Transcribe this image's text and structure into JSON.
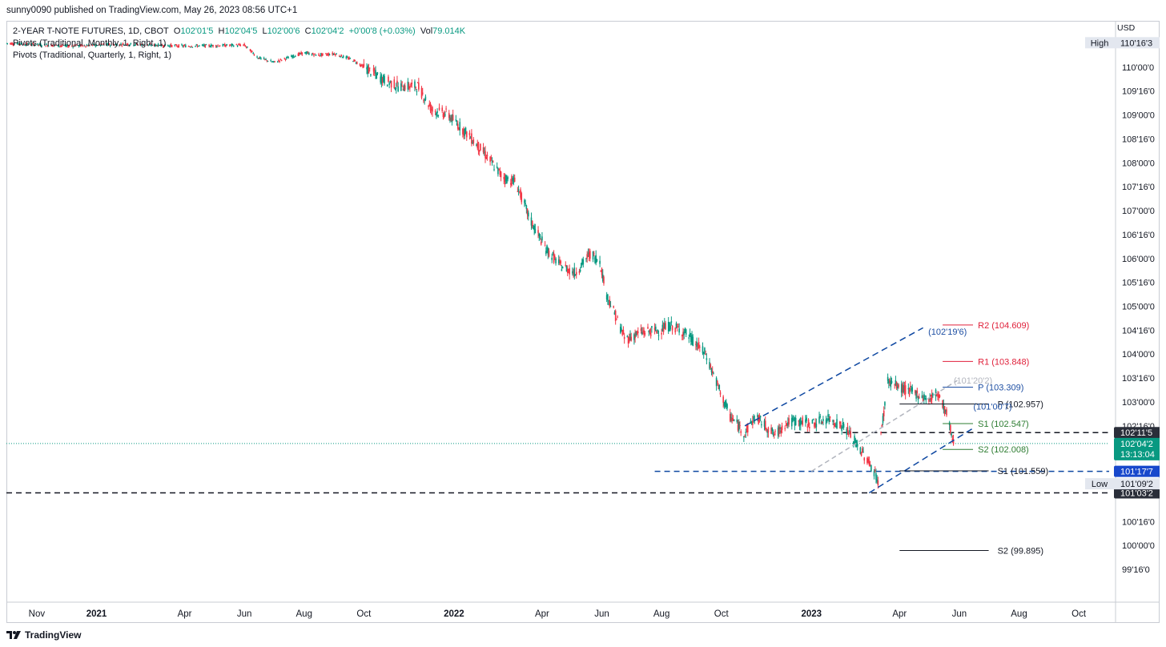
{
  "header": {
    "publisher_line": "sunny0090 published on TradingView.com, May 26, 2023 08:56 UTC+1"
  },
  "legend": {
    "symbol": "2-YEAR T-NOTE FUTURES, 1D, CBOT",
    "o_label": "O",
    "o_value": "102'01'5",
    "h_label": "H",
    "h_value": "102'04'5",
    "l_label": "L",
    "l_value": "102'00'6",
    "c_label": "C",
    "c_value": "102'04'2",
    "change": "+0'00'8 (+0.03%)",
    "vol_label": "Vol",
    "vol_value": "79.014K",
    "pivot_monthly": "Pivots (Traditional, Monthly, 1, Right, 1)",
    "pivot_quarterly": "Pivots (Traditional, Quarterly, 1, Right, 1)"
  },
  "footer": {
    "brand": "TradingView"
  },
  "colors": {
    "up": "#089981",
    "down": "#f23645",
    "blue_dash": "#0d47a1",
    "pivot_black": "#131722",
    "r_red": "#e0213b",
    "s_green": "#2e7d32",
    "p_blue": "#1e4fa3",
    "gray_line": "#b2b5be",
    "tag_dark": "#2a2e39",
    "tag_green": "#089981",
    "tag_blue": "#1848cc",
    "tag_light": "#e3e7ef"
  },
  "chart_data": {
    "type": "candlestick",
    "title": "2-YEAR T-NOTE FUTURES, 1D, CBOT",
    "currency": "USD",
    "y_axis": {
      "tick_labels": [
        "110'00'0",
        "109'16'0",
        "109'00'0",
        "108'16'0",
        "108'00'0",
        "107'16'0",
        "107'00'0",
        "106'16'0",
        "106'00'0",
        "105'16'0",
        "105'00'0",
        "104'16'0",
        "104'00'0",
        "103'16'0",
        "103'00'0",
        "102'16'0",
        "100'16'0",
        "100'00'0",
        "99'16'0"
      ],
      "range": [
        99.25,
        110.8
      ]
    },
    "x_axis": {
      "tick_labels": [
        "Nov",
        "2021",
        "Apr",
        "Jun",
        "Aug",
        "Oct",
        "2022",
        "Apr",
        "Jun",
        "Aug",
        "Oct",
        "2023",
        "Apr",
        "Jun",
        "Aug",
        "Oct"
      ],
      "bold_ticks": [
        "2021",
        "2022",
        "2023"
      ],
      "range": [
        "2020-10-01",
        "2023-11-01"
      ],
      "tick_dates": [
        "2020-11-01",
        "2021-01-01",
        "2021-04-01",
        "2021-06-01",
        "2021-08-01",
        "2021-10-01",
        "2022-01-01",
        "2022-04-01",
        "2022-06-01",
        "2022-08-01",
        "2022-10-01",
        "2023-01-01",
        "2023-04-01",
        "2023-06-01",
        "2023-08-01",
        "2023-10-01"
      ]
    },
    "price_path": [
      [
        "2020-10-01",
        110.5
      ],
      [
        "2020-12-01",
        110.44
      ],
      [
        "2021-02-01",
        110.48
      ],
      [
        "2021-04-01",
        110.44
      ],
      [
        "2021-06-01",
        110.46
      ],
      [
        "2021-06-15",
        110.2
      ],
      [
        "2021-07-01",
        110.1
      ],
      [
        "2021-08-01",
        110.3
      ],
      [
        "2021-08-15",
        110.25
      ],
      [
        "2021-09-01",
        110.28
      ],
      [
        "2021-09-20",
        110.15
      ],
      [
        "2021-10-20",
        109.75
      ],
      [
        "2021-11-05",
        109.6
      ],
      [
        "2021-11-25",
        109.6
      ],
      [
        "2021-12-10",
        109.1
      ],
      [
        "2021-12-25",
        109.02
      ],
      [
        "2022-01-15",
        108.6
      ],
      [
        "2022-02-01",
        108.2
      ],
      [
        "2022-02-20",
        107.7
      ],
      [
        "2022-03-05",
        107.6
      ],
      [
        "2022-03-20",
        106.8
      ],
      [
        "2022-04-05",
        106.2
      ],
      [
        "2022-04-20",
        105.85
      ],
      [
        "2022-05-05",
        105.7
      ],
      [
        "2022-05-20",
        106.1
      ],
      [
        "2022-05-30",
        105.95
      ],
      [
        "2022-06-05",
        105.3
      ],
      [
        "2022-06-15",
        104.8
      ],
      [
        "2022-06-25",
        104.3
      ],
      [
        "2022-07-10",
        104.45
      ],
      [
        "2022-07-30",
        104.5
      ],
      [
        "2022-08-10",
        104.6
      ],
      [
        "2022-08-25",
        104.45
      ],
      [
        "2022-09-15",
        104.0
      ],
      [
        "2022-09-30",
        103.2
      ],
      [
        "2022-10-10",
        102.7
      ],
      [
        "2022-10-25",
        102.35
      ],
      [
        "2022-11-05",
        102.7
      ],
      [
        "2022-11-25",
        102.3
      ],
      [
        "2022-12-05",
        102.55
      ],
      [
        "2022-12-15",
        102.6
      ],
      [
        "2023-01-01",
        102.55
      ],
      [
        "2023-01-20",
        102.65
      ],
      [
        "2023-02-05",
        102.45
      ],
      [
        "2023-02-20",
        102.0
      ],
      [
        "2023-03-05",
        101.6
      ],
      [
        "2023-03-10",
        101.35
      ],
      [
        "2023-03-13",
        102.3
      ],
      [
        "2023-03-20",
        103.45
      ],
      [
        "2023-04-01",
        103.3
      ],
      [
        "2023-04-15",
        103.2
      ],
      [
        "2023-05-01",
        103.05
      ],
      [
        "2023-05-10",
        103.2
      ],
      [
        "2023-05-20",
        102.7
      ],
      [
        "2023-05-26",
        102.13
      ]
    ],
    "last_price": "102'04'2",
    "countdown": "13:13:04",
    "high": {
      "label": "High",
      "value": "110'16'3",
      "price": 110.51
    },
    "low": {
      "label": "Low",
      "value": "101'09'2",
      "price": 101.29
    },
    "horizontal_levels": [
      {
        "name": "resistance",
        "price": 102.36,
        "tag": "102'11'5"
      },
      {
        "name": "support-channel-base",
        "price": 101.55,
        "tag": "101'17'7"
      },
      {
        "name": "support-low",
        "price": 101.1,
        "tag": "101'03'2"
      }
    ],
    "channel": {
      "upper": [
        [
          "2022-10-25",
          102.5
        ],
        [
          "2023-04-25",
          104.55
        ]
      ],
      "lower": [
        [
          "2023-03-01",
          101.1
        ],
        [
          "2023-06-15",
          102.45
        ]
      ]
    },
    "gray_trendline": [
      [
        "2023-01-01",
        101.55
      ],
      [
        "2023-05-30",
        103.45
      ]
    ],
    "channel_labels": [
      {
        "text": "(102'19'6)",
        "date": "2023-05-20",
        "price": 104.47
      },
      {
        "text": "(101'20'2)",
        "date": "2023-06-15",
        "price": 103.45
      },
      {
        "text": "(101'00'7)",
        "date": "2023-07-05",
        "price": 102.91
      }
    ],
    "pivots_monthly": [
      {
        "label": "R2 (104.609)",
        "value": 104.609,
        "color": "red"
      },
      {
        "label": "R1 (103.848)",
        "value": 103.848,
        "color": "red"
      },
      {
        "label": "P (103.309)",
        "value": 103.309,
        "color": "blue"
      },
      {
        "label": "S1 (102.547)",
        "value": 102.547,
        "color": "green"
      },
      {
        "label": "S2 (102.008)",
        "value": 102.008,
        "color": "green"
      }
    ],
    "pivots_quarterly": [
      {
        "label": "P (102.957)",
        "value": 102.957
      },
      {
        "label": "S1 (101.559)",
        "value": 101.559
      },
      {
        "label": "S2 (99.895)",
        "value": 99.895
      }
    ]
  }
}
